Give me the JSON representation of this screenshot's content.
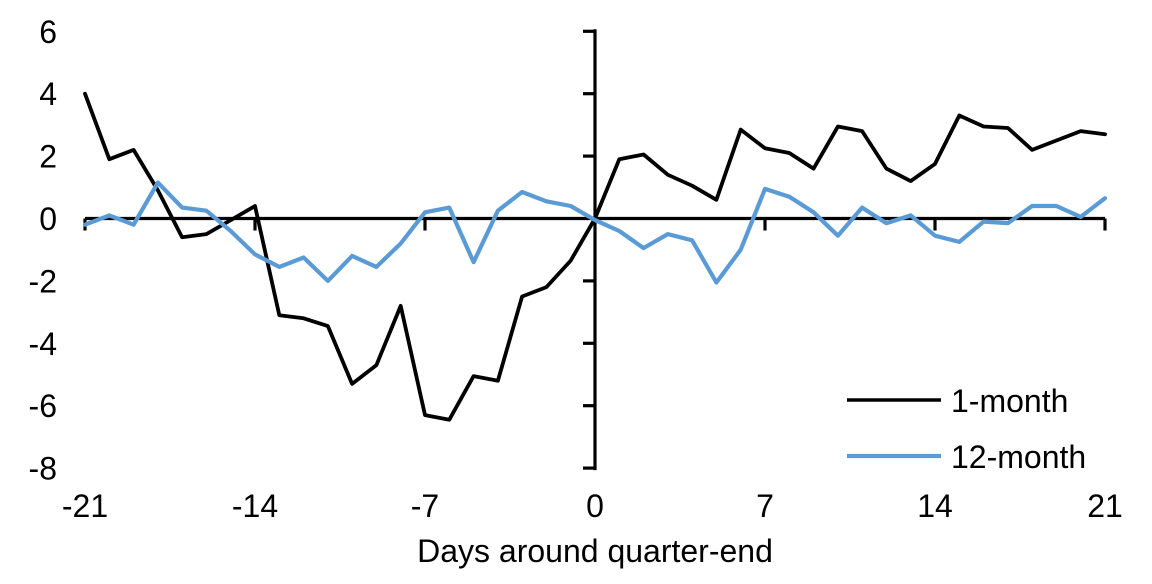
{
  "chart_data": {
    "type": "line",
    "title": "",
    "xlabel": "Days around quarter-end",
    "ylabel": "",
    "grid": false,
    "legend_position": "inside-bottom-right",
    "colors": {
      "series1": "#000000",
      "series2": "#5B9BD5",
      "axis": "#000000",
      "background": "#ffffff"
    },
    "x_axis": {
      "min": -21,
      "max": 21,
      "tick_values": [
        -21,
        -14,
        -7,
        0,
        7,
        14,
        21
      ],
      "tick_labels": [
        "-21",
        "-14",
        "-7",
        "0",
        "7",
        "14",
        "21"
      ]
    },
    "y_axis": {
      "min": -8,
      "max": 6,
      "tick_values": [
        6,
        4,
        2,
        0,
        -2,
        -4,
        -6,
        -8
      ],
      "tick_labels": [
        "6",
        "4",
        "2",
        "0",
        "-2",
        "-4",
        "-6",
        "-8"
      ]
    },
    "x": [
      -21,
      -20,
      -19,
      -18,
      -17,
      -16,
      -15,
      -14,
      -13,
      -12,
      -11,
      -10,
      -9,
      -8,
      -7,
      -6,
      -5,
      -4,
      -3,
      -2,
      -1,
      0,
      1,
      2,
      3,
      4,
      5,
      6,
      7,
      8,
      9,
      10,
      11,
      12,
      13,
      14,
      15,
      16,
      17,
      18,
      19,
      20,
      21
    ],
    "series": [
      {
        "name": "1-month",
        "color": "#000000",
        "values": [
          4.0,
          1.9,
          2.2,
          0.9,
          -0.6,
          -0.5,
          -0.05,
          0.4,
          -3.1,
          -3.2,
          -3.45,
          -5.3,
          -4.7,
          -2.8,
          -6.3,
          -6.45,
          -5.05,
          -5.2,
          -2.5,
          -2.2,
          -1.35,
          0.0,
          1.9,
          2.05,
          1.4,
          1.05,
          0.6,
          2.85,
          2.25,
          2.1,
          1.6,
          2.95,
          2.8,
          1.6,
          1.2,
          1.75,
          3.3,
          2.95,
          2.9,
          2.2,
          2.5,
          2.8,
          2.7
        ]
      },
      {
        "name": "12-month",
        "color": "#5B9BD5",
        "values": [
          -0.2,
          0.1,
          -0.2,
          1.15,
          0.35,
          0.25,
          -0.4,
          -1.15,
          -1.55,
          -1.25,
          -2.0,
          -1.2,
          -1.55,
          -0.8,
          0.2,
          0.35,
          -1.4,
          0.25,
          0.85,
          0.55,
          0.4,
          -0.05,
          -0.4,
          -0.95,
          -0.5,
          -0.7,
          -2.05,
          -1.0,
          0.95,
          0.7,
          0.2,
          -0.55,
          0.35,
          -0.15,
          0.1,
          -0.55,
          -0.75,
          -0.1,
          -0.15,
          0.4,
          0.4,
          0.05,
          0.65
        ]
      }
    ]
  }
}
